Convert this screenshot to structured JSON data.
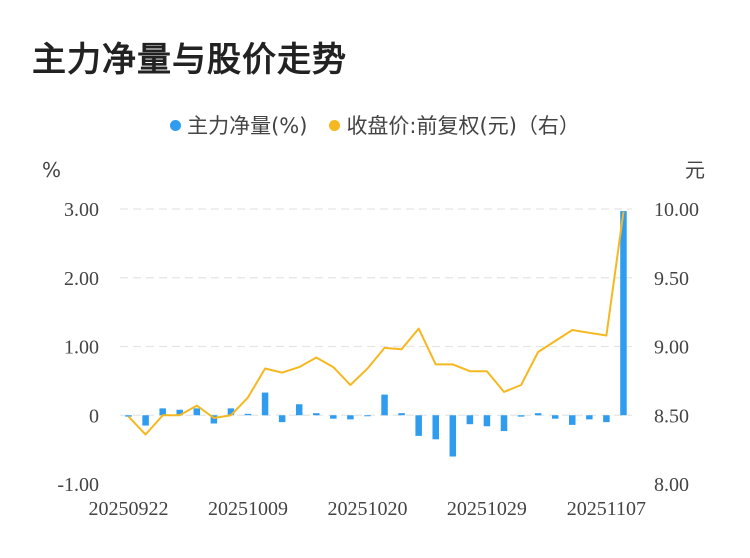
{
  "title": "主力净量与股价走势",
  "legend": {
    "net": "主力净量(%)",
    "price": "收盘价:前复权(元)（右）"
  },
  "colors": {
    "bar": "#2f9cf0",
    "line": "#f5b820",
    "grid": "#e5e5e5",
    "axis_text": "#444444"
  },
  "chart_data": {
    "type": "bar+line",
    "left_axis": {
      "unit": "%",
      "ylim": [
        -1.0,
        3.0
      ],
      "ticks": [
        "3.00",
        "2.00",
        "1.00",
        "0",
        "-1.00"
      ],
      "tick_values": [
        3,
        2,
        1,
        0,
        -1
      ]
    },
    "right_axis": {
      "unit": "元",
      "ylim": [
        8.0,
        10.0
      ],
      "ticks": [
        "10.00",
        "9.50",
        "9.00",
        "8.50",
        "8.00"
      ],
      "tick_values": [
        10,
        9.5,
        9,
        8.5,
        8
      ]
    },
    "x_tick_labels": [
      "20250922",
      "20251009",
      "20251020",
      "20251029",
      "20251107"
    ],
    "x_tick_indices": [
      0,
      7,
      14,
      21,
      28
    ],
    "series": [
      {
        "name": "主力净量(%)",
        "kind": "bar",
        "axis": "left",
        "values": [
          -0.02,
          -0.15,
          0.1,
          0.08,
          0.1,
          -0.12,
          0.1,
          0.02,
          0.33,
          -0.1,
          0.16,
          0.03,
          -0.05,
          -0.06,
          -0.01,
          0.3,
          0.03,
          -0.3,
          -0.35,
          -0.6,
          -0.13,
          -0.16,
          -0.23,
          -0.02,
          0.03,
          -0.05,
          -0.14,
          -0.06,
          -0.1,
          2.97
        ]
      },
      {
        "name": "收盘价:前复权(元)（右）",
        "kind": "line",
        "axis": "right",
        "values": [
          8.49,
          8.36,
          8.5,
          8.5,
          8.57,
          8.48,
          8.5,
          8.63,
          8.84,
          8.81,
          8.85,
          8.92,
          8.85,
          8.72,
          8.84,
          8.99,
          8.98,
          9.13,
          8.87,
          8.87,
          8.82,
          8.82,
          8.67,
          8.72,
          8.96,
          9.04,
          9.12,
          9.1,
          9.08,
          9.98
        ]
      }
    ]
  }
}
